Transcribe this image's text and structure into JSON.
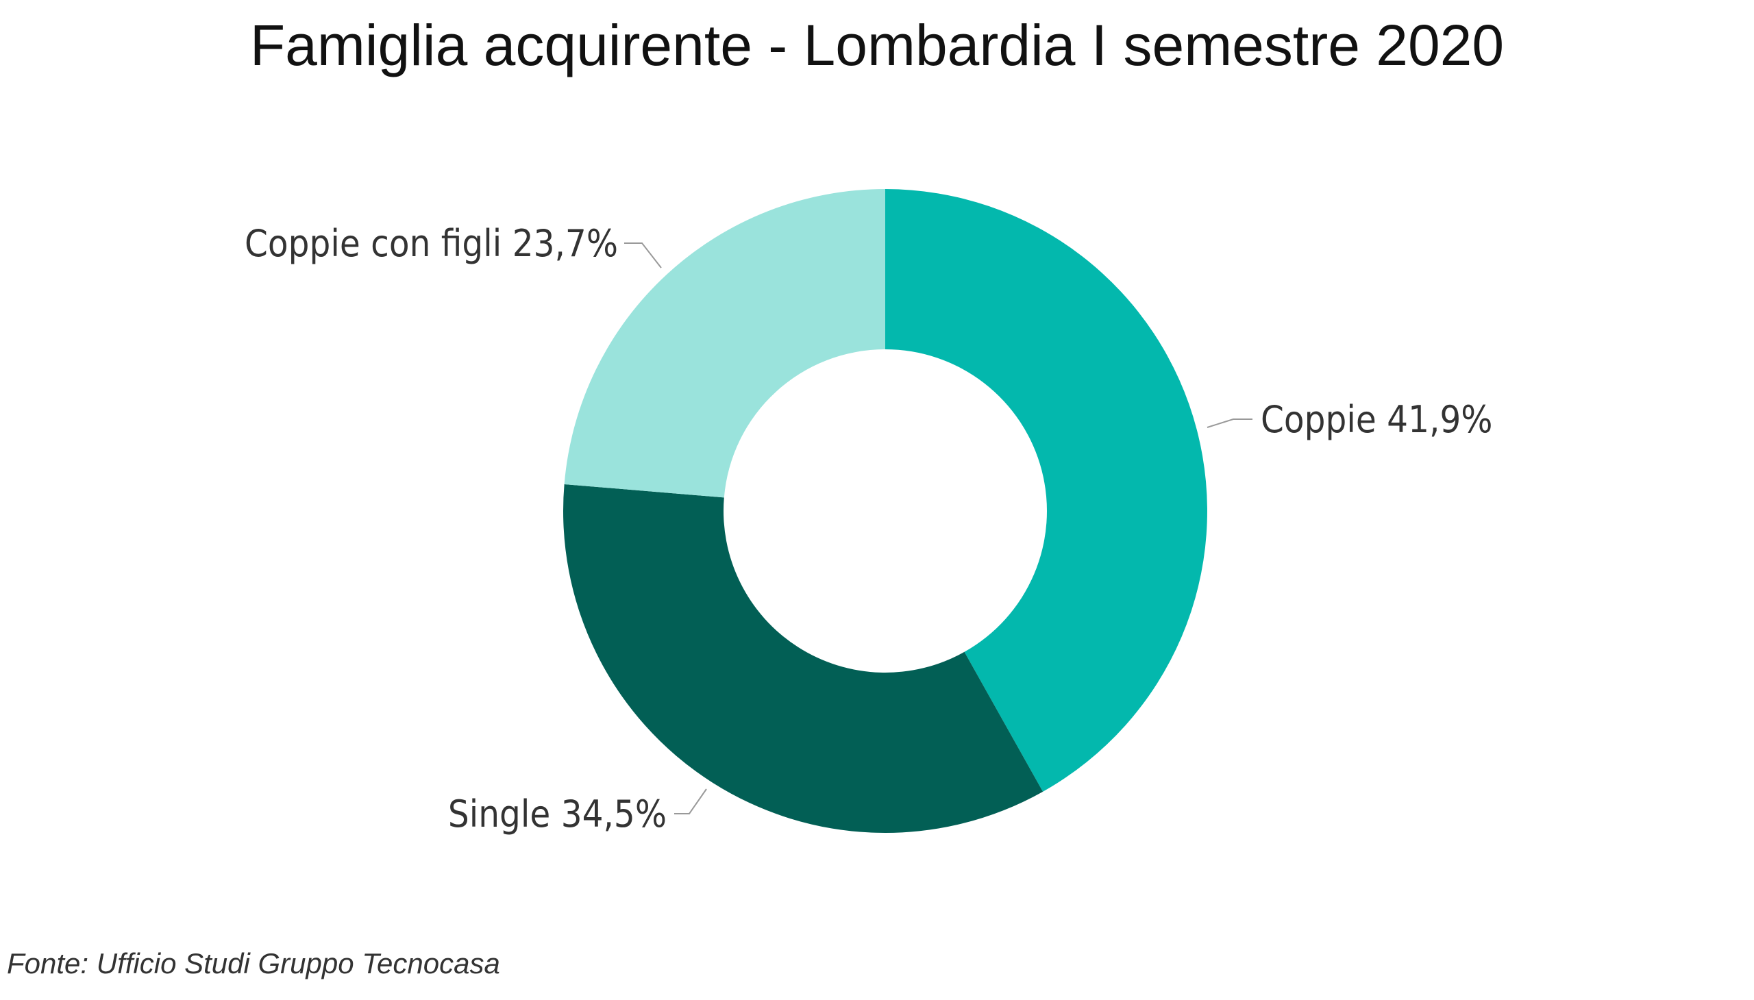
{
  "chart_data": {
    "type": "pie",
    "subtype": "donut",
    "title": "Famiglia acquirente - Lombardia I semestre 2020",
    "source": "Fonte: Ufficio Studi Gruppo Tecnocasa",
    "slices": [
      {
        "label": "Coppie",
        "value": 41.9,
        "display": "Coppie 41,9%",
        "color": "#03B8AD"
      },
      {
        "label": "Single",
        "value": 34.5,
        "display": "Single 34,5%",
        "color": "#025F55"
      },
      {
        "label": "Coppie con figli",
        "value": 23.7,
        "display": "Coppie con figli 23,7%",
        "color": "#9AE3DC"
      }
    ],
    "legend": "none"
  }
}
